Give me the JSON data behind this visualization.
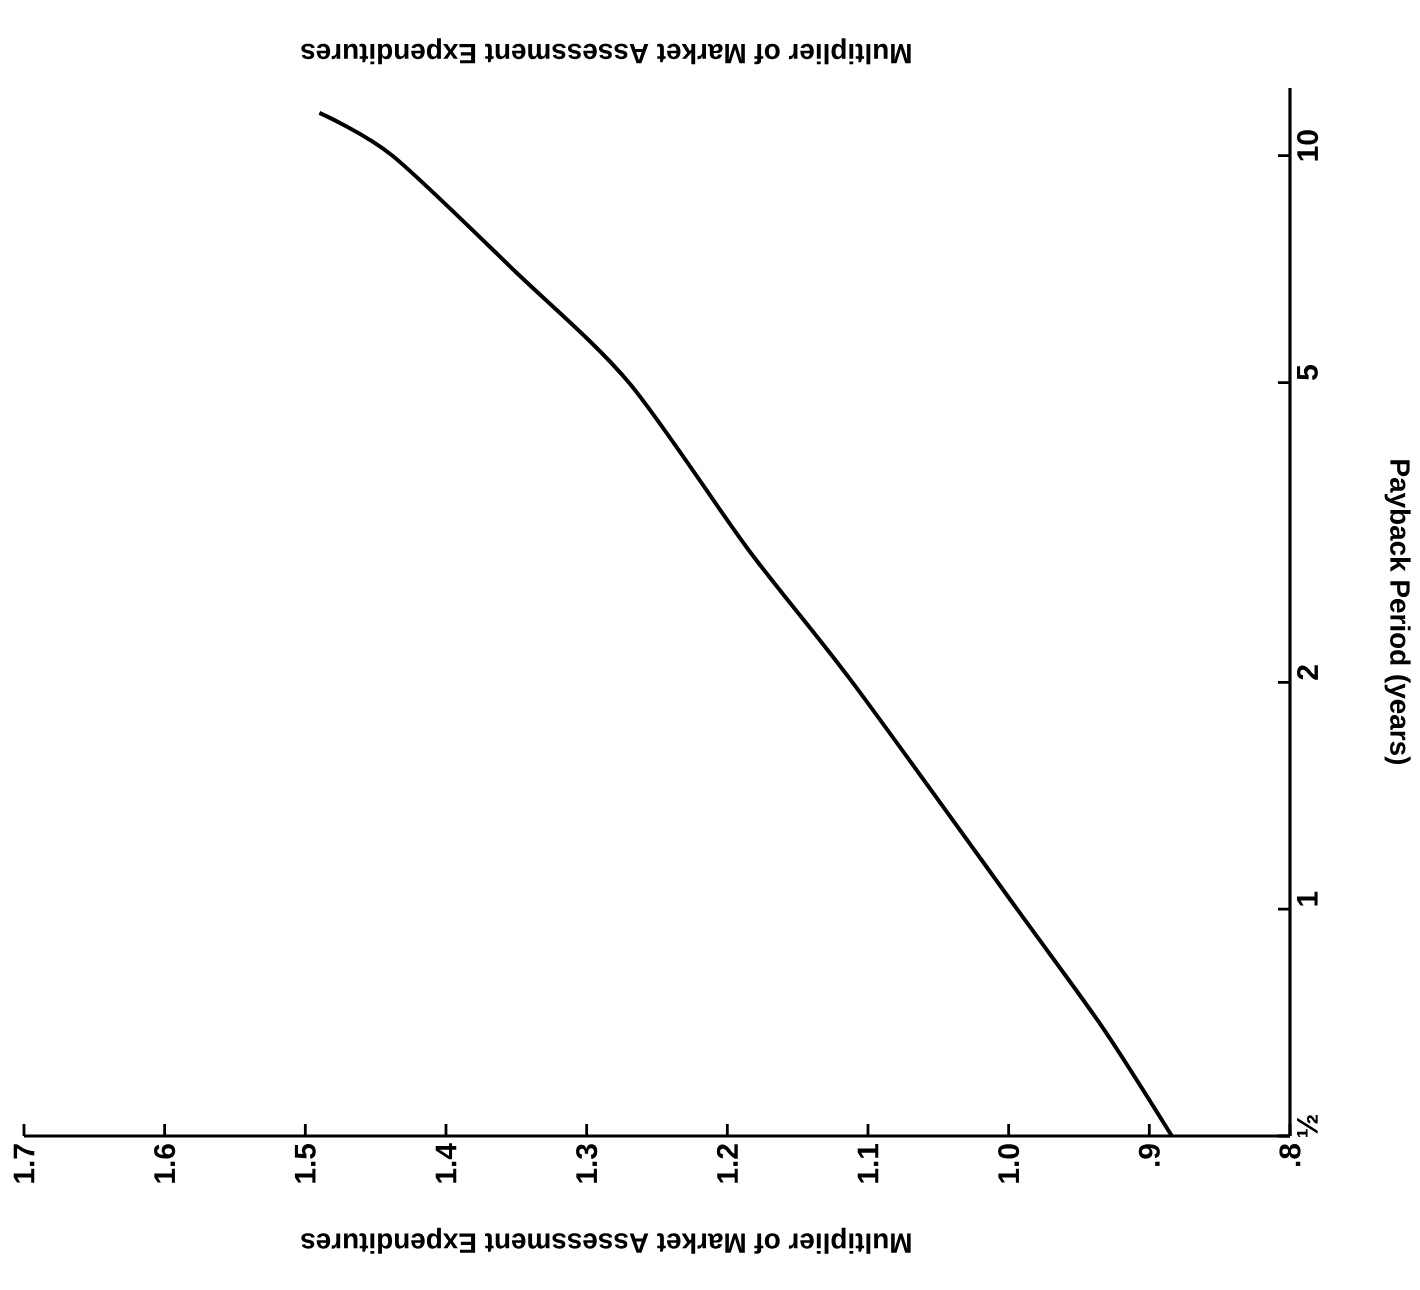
{
  "chart_data": {
    "type": "line",
    "xlabel": "Multiplier of Market Assessment Expenditures",
    "ylabel": "Payback Period (years)",
    "annotations": [
      "Multiplier of Market Assessment Expenditures"
    ],
    "log": "y",
    "grid": false,
    "marker": "none",
    "line_style": "solid",
    "xlim": [
      1.7,
      0.8
    ],
    "ylim": [
      0.5,
      12.3
    ],
    "xticks": [
      1.7,
      1.6,
      1.5,
      1.4,
      1.3,
      1.2,
      1.1,
      {
        "value": 1.0,
        "label": "1.0"
      },
      {
        "value": 0.9,
        "label": ".9"
      },
      {
        "value": 0.8,
        "label": ".8"
      }
    ],
    "yticks": [
      {
        "value": 0.5,
        "label": "½"
      },
      1,
      2,
      5,
      10
    ],
    "series": [
      {
        "color": "#000000",
        "x": [
          0.884,
          0.934,
          0.994,
          1.111,
          1.185,
          1.27,
          1.35,
          1.438,
          1.49
        ],
        "values": [
          0.5,
          0.7,
          1,
          2,
          3,
          5,
          7,
          10,
          11.4
        ]
      }
    ]
  }
}
